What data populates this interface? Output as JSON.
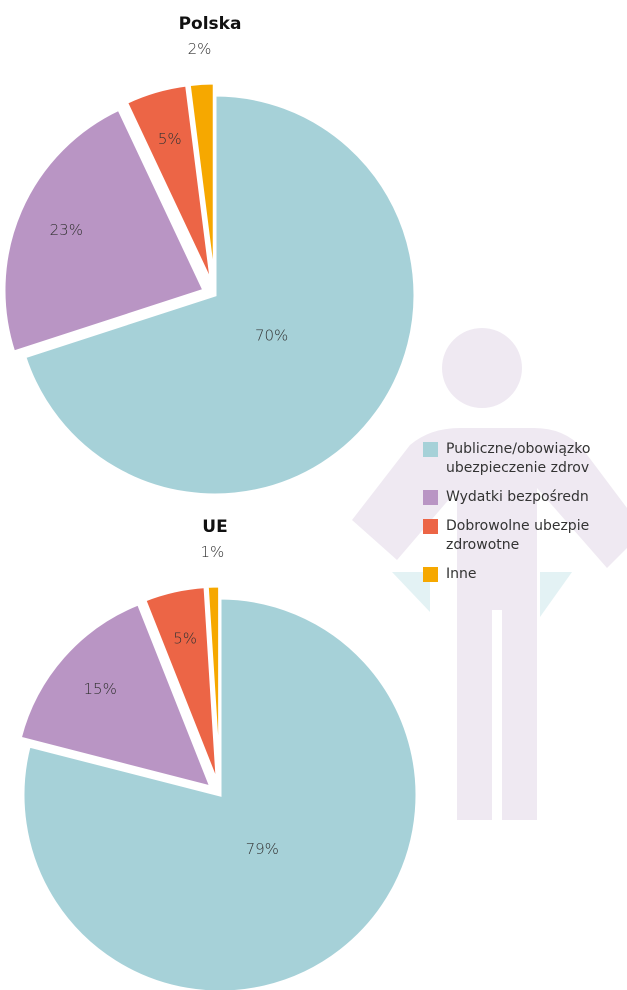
{
  "legend": {
    "labels": [
      "Publiczne/obowiązko ubezpieczenie zdrov",
      "Wydatki bezpośredn",
      "Dobrowolne ubezpie zdrowotne",
      "Inne"
    ],
    "colors": [
      "#a6d1d8",
      "#b995c4",
      "#ec6546",
      "#f6a800"
    ]
  },
  "chart_data": [
    {
      "type": "pie",
      "title": "Polska",
      "values": [
        70,
        23,
        5,
        2
      ],
      "value_labels": [
        "70%",
        "23%",
        "5%",
        "2%"
      ]
    },
    {
      "type": "pie",
      "title": "UE",
      "values": [
        79,
        15,
        5,
        1
      ],
      "value_labels": [
        "79%",
        "15%",
        "5%",
        "1%"
      ]
    }
  ]
}
